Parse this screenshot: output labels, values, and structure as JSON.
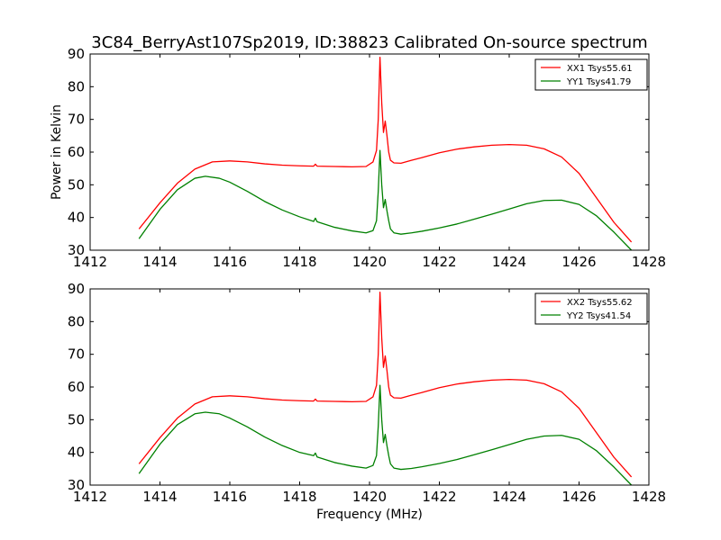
{
  "title": "3C84_BerryAst107Sp2019, ID:38823 Calibrated On-source spectrum",
  "chart_data": [
    {
      "type": "line",
      "xlabel": "",
      "ylabel": "Power in Kelvin",
      "xlim": [
        1412,
        1428
      ],
      "ylim": [
        30,
        90
      ],
      "xticks": [
        "1412",
        "1414",
        "1416",
        "1418",
        "1420",
        "1422",
        "1424",
        "1426",
        "1428"
      ],
      "yticks": [
        "30",
        "40",
        "50",
        "60",
        "70",
        "80",
        "90"
      ],
      "legend_position": "top-right",
      "series": [
        {
          "name": "XX1 Tsys55.61",
          "color": "#ff0000",
          "x": [
            1413.4,
            1414.0,
            1414.5,
            1415.0,
            1415.5,
            1416.0,
            1416.5,
            1417.0,
            1417.5,
            1418.0,
            1418.4,
            1418.45,
            1418.5,
            1419.0,
            1419.5,
            1419.9,
            1420.1,
            1420.2,
            1420.25,
            1420.3,
            1420.35,
            1420.4,
            1420.45,
            1420.5,
            1420.55,
            1420.6,
            1420.7,
            1420.9,
            1421.2,
            1421.5,
            1422.0,
            1422.5,
            1423.0,
            1423.5,
            1424.0,
            1424.5,
            1425.0,
            1425.5,
            1426.0,
            1426.5,
            1427.0,
            1427.5
          ],
          "y": [
            36.5,
            44.5,
            50.5,
            54.8,
            57.0,
            57.3,
            57.0,
            56.4,
            56.0,
            55.8,
            55.7,
            56.3,
            55.7,
            55.6,
            55.5,
            55.6,
            57.0,
            60.5,
            70.0,
            89.0,
            75.0,
            66.0,
            69.5,
            65.0,
            60.0,
            57.5,
            56.7,
            56.6,
            57.5,
            58.3,
            59.8,
            60.9,
            61.6,
            62.1,
            62.3,
            62.1,
            61.0,
            58.5,
            53.5,
            46.0,
            38.5,
            32.5
          ]
        },
        {
          "name": "YY1 Tsys41.79",
          "color": "#008000",
          "x": [
            1413.4,
            1414.0,
            1414.5,
            1415.0,
            1415.3,
            1415.7,
            1416.0,
            1416.5,
            1417.0,
            1417.5,
            1418.0,
            1418.4,
            1418.45,
            1418.5,
            1419.0,
            1419.5,
            1419.9,
            1420.1,
            1420.2,
            1420.25,
            1420.3,
            1420.35,
            1420.4,
            1420.45,
            1420.5,
            1420.55,
            1420.6,
            1420.7,
            1420.9,
            1421.2,
            1421.5,
            1422.0,
            1422.5,
            1423.0,
            1423.5,
            1424.0,
            1424.5,
            1425.0,
            1425.5,
            1426.0,
            1426.5,
            1427.0,
            1427.5
          ],
          "y": [
            33.5,
            42.5,
            48.5,
            52.0,
            52.6,
            52.0,
            50.8,
            48.0,
            44.9,
            42.3,
            40.2,
            38.8,
            39.8,
            38.7,
            37.0,
            35.9,
            35.3,
            36.0,
            39.0,
            48.0,
            60.5,
            50.0,
            43.0,
            45.5,
            42.0,
            39.0,
            36.5,
            35.3,
            34.9,
            35.3,
            35.8,
            36.8,
            38.0,
            39.5,
            41.0,
            42.6,
            44.2,
            45.2,
            45.3,
            44.0,
            40.5,
            35.5,
            30.0
          ]
        }
      ]
    },
    {
      "type": "line",
      "xlabel": "Frequency (MHz)",
      "ylabel": "",
      "xlim": [
        1412,
        1428
      ],
      "ylim": [
        30,
        90
      ],
      "xticks": [
        "1412",
        "1414",
        "1416",
        "1418",
        "1420",
        "1422",
        "1424",
        "1426",
        "1428"
      ],
      "yticks": [
        "30",
        "40",
        "50",
        "60",
        "70",
        "80",
        "90"
      ],
      "legend_position": "top-right",
      "series": [
        {
          "name": "XX2 Tsys55.62",
          "color": "#ff0000",
          "x": [
            1413.4,
            1414.0,
            1414.5,
            1415.0,
            1415.5,
            1416.0,
            1416.5,
            1417.0,
            1417.5,
            1418.0,
            1418.4,
            1418.45,
            1418.5,
            1419.0,
            1419.5,
            1419.9,
            1420.1,
            1420.2,
            1420.25,
            1420.3,
            1420.35,
            1420.4,
            1420.45,
            1420.5,
            1420.55,
            1420.6,
            1420.7,
            1420.9,
            1421.2,
            1421.5,
            1422.0,
            1422.5,
            1423.0,
            1423.5,
            1424.0,
            1424.5,
            1425.0,
            1425.5,
            1426.0,
            1426.5,
            1427.0,
            1427.5
          ],
          "y": [
            36.5,
            44.5,
            50.5,
            54.8,
            57.0,
            57.3,
            57.0,
            56.4,
            56.0,
            55.8,
            55.7,
            56.3,
            55.7,
            55.6,
            55.5,
            55.6,
            57.0,
            60.5,
            70.0,
            89.0,
            75.0,
            66.0,
            69.5,
            65.0,
            60.0,
            57.5,
            56.7,
            56.6,
            57.5,
            58.3,
            59.8,
            60.9,
            61.6,
            62.1,
            62.3,
            62.1,
            61.0,
            58.5,
            53.5,
            46.0,
            38.5,
            32.5
          ]
        },
        {
          "name": "YY2 Tsys41.54",
          "color": "#008000",
          "x": [
            1413.4,
            1414.0,
            1414.5,
            1415.0,
            1415.3,
            1415.7,
            1416.0,
            1416.5,
            1417.0,
            1417.5,
            1418.0,
            1418.4,
            1418.45,
            1418.5,
            1419.0,
            1419.5,
            1419.9,
            1420.1,
            1420.2,
            1420.25,
            1420.3,
            1420.35,
            1420.4,
            1420.45,
            1420.5,
            1420.55,
            1420.6,
            1420.7,
            1420.9,
            1421.2,
            1421.5,
            1422.0,
            1422.5,
            1423.0,
            1423.5,
            1424.0,
            1424.5,
            1425.0,
            1425.5,
            1426.0,
            1426.5,
            1427.0,
            1427.5
          ],
          "y": [
            33.5,
            42.5,
            48.5,
            51.8,
            52.3,
            51.8,
            50.5,
            47.8,
            44.7,
            42.1,
            40.0,
            39.0,
            39.8,
            38.6,
            36.9,
            35.8,
            35.2,
            36.0,
            39.0,
            48.0,
            60.5,
            50.0,
            43.0,
            45.5,
            42.0,
            39.0,
            36.5,
            35.2,
            34.8,
            35.1,
            35.6,
            36.6,
            37.8,
            39.3,
            40.8,
            42.4,
            44.0,
            45.0,
            45.2,
            44.0,
            40.5,
            35.5,
            30.0
          ]
        }
      ]
    }
  ]
}
